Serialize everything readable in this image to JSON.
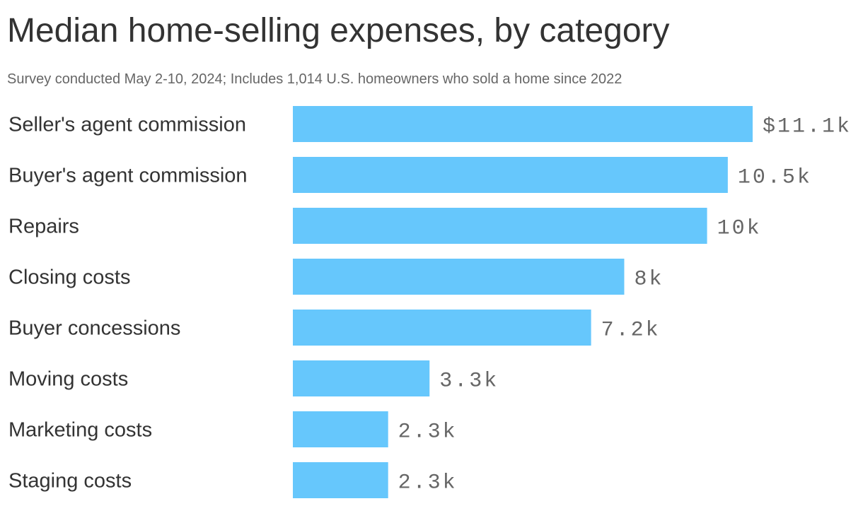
{
  "header": {
    "title": "Median home-selling expenses, by category",
    "subtitle": "Survey conducted May 2-10, 2024; Includes 1,014 U.S. homeowners who sold a home since 2022"
  },
  "chart_data": {
    "type": "bar",
    "orientation": "horizontal",
    "title": "Median home-selling expenses, by category",
    "subtitle": "Survey conducted May 2-10, 2024; Includes 1,014 U.S. homeowners who sold a home since 2022",
    "categories": [
      "Seller's agent commission",
      "Buyer's agent commission",
      "Repairs",
      "Closing costs",
      "Buyer concessions",
      "Moving costs",
      "Marketing costs",
      "Staging costs"
    ],
    "values": [
      11.1,
      10.5,
      10,
      8,
      7.2,
      3.3,
      2.3,
      2.3
    ],
    "value_labels": [
      "$11.1k",
      "10.5k",
      "10k",
      "8k",
      "7.2k",
      "3.3k",
      "2.3k",
      "2.3k"
    ],
    "unit": "thousands of dollars",
    "bar_color": "#66c7fc",
    "grid": false,
    "legend": "none",
    "xlim": [
      0,
      11.1
    ]
  }
}
